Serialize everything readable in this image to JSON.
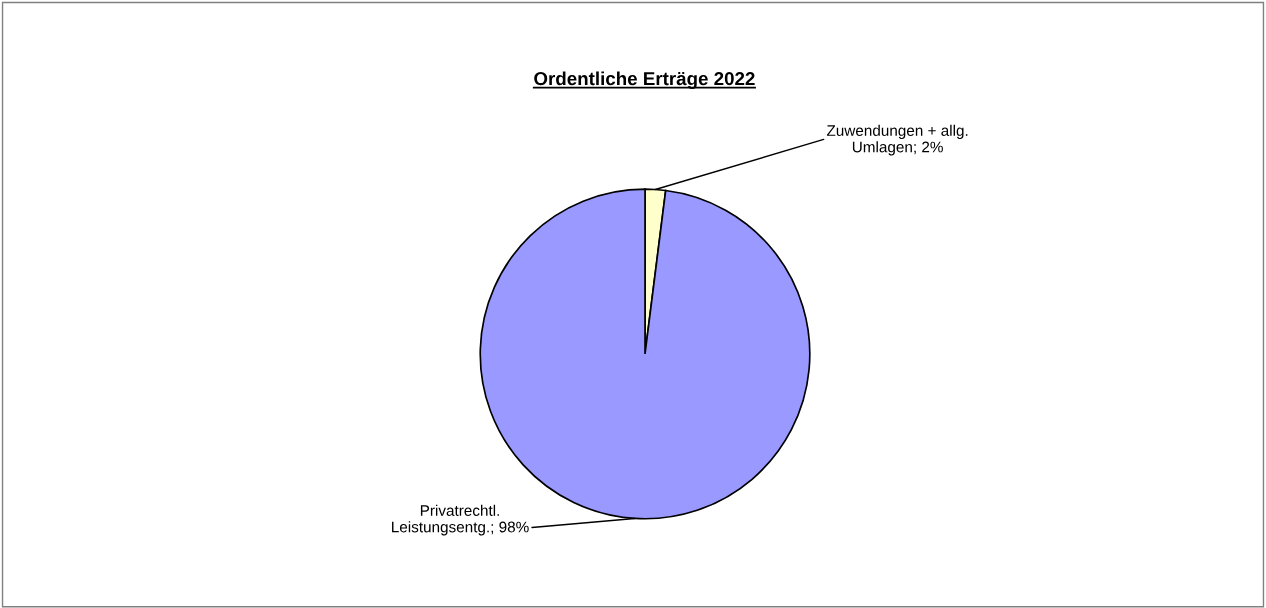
{
  "chart_data": {
    "type": "pie",
    "title": "Ordentliche Erträge 2022",
    "categories": [
      "Zuwendungen + allg.\nUmlagen",
      "Privatrechtl.\nLeistungsentg."
    ],
    "values": [
      2,
      98
    ],
    "value_labels": [
      "2%",
      "98%"
    ],
    "colors": [
      "#ffffcc",
      "#9999ff"
    ],
    "legend": false
  }
}
